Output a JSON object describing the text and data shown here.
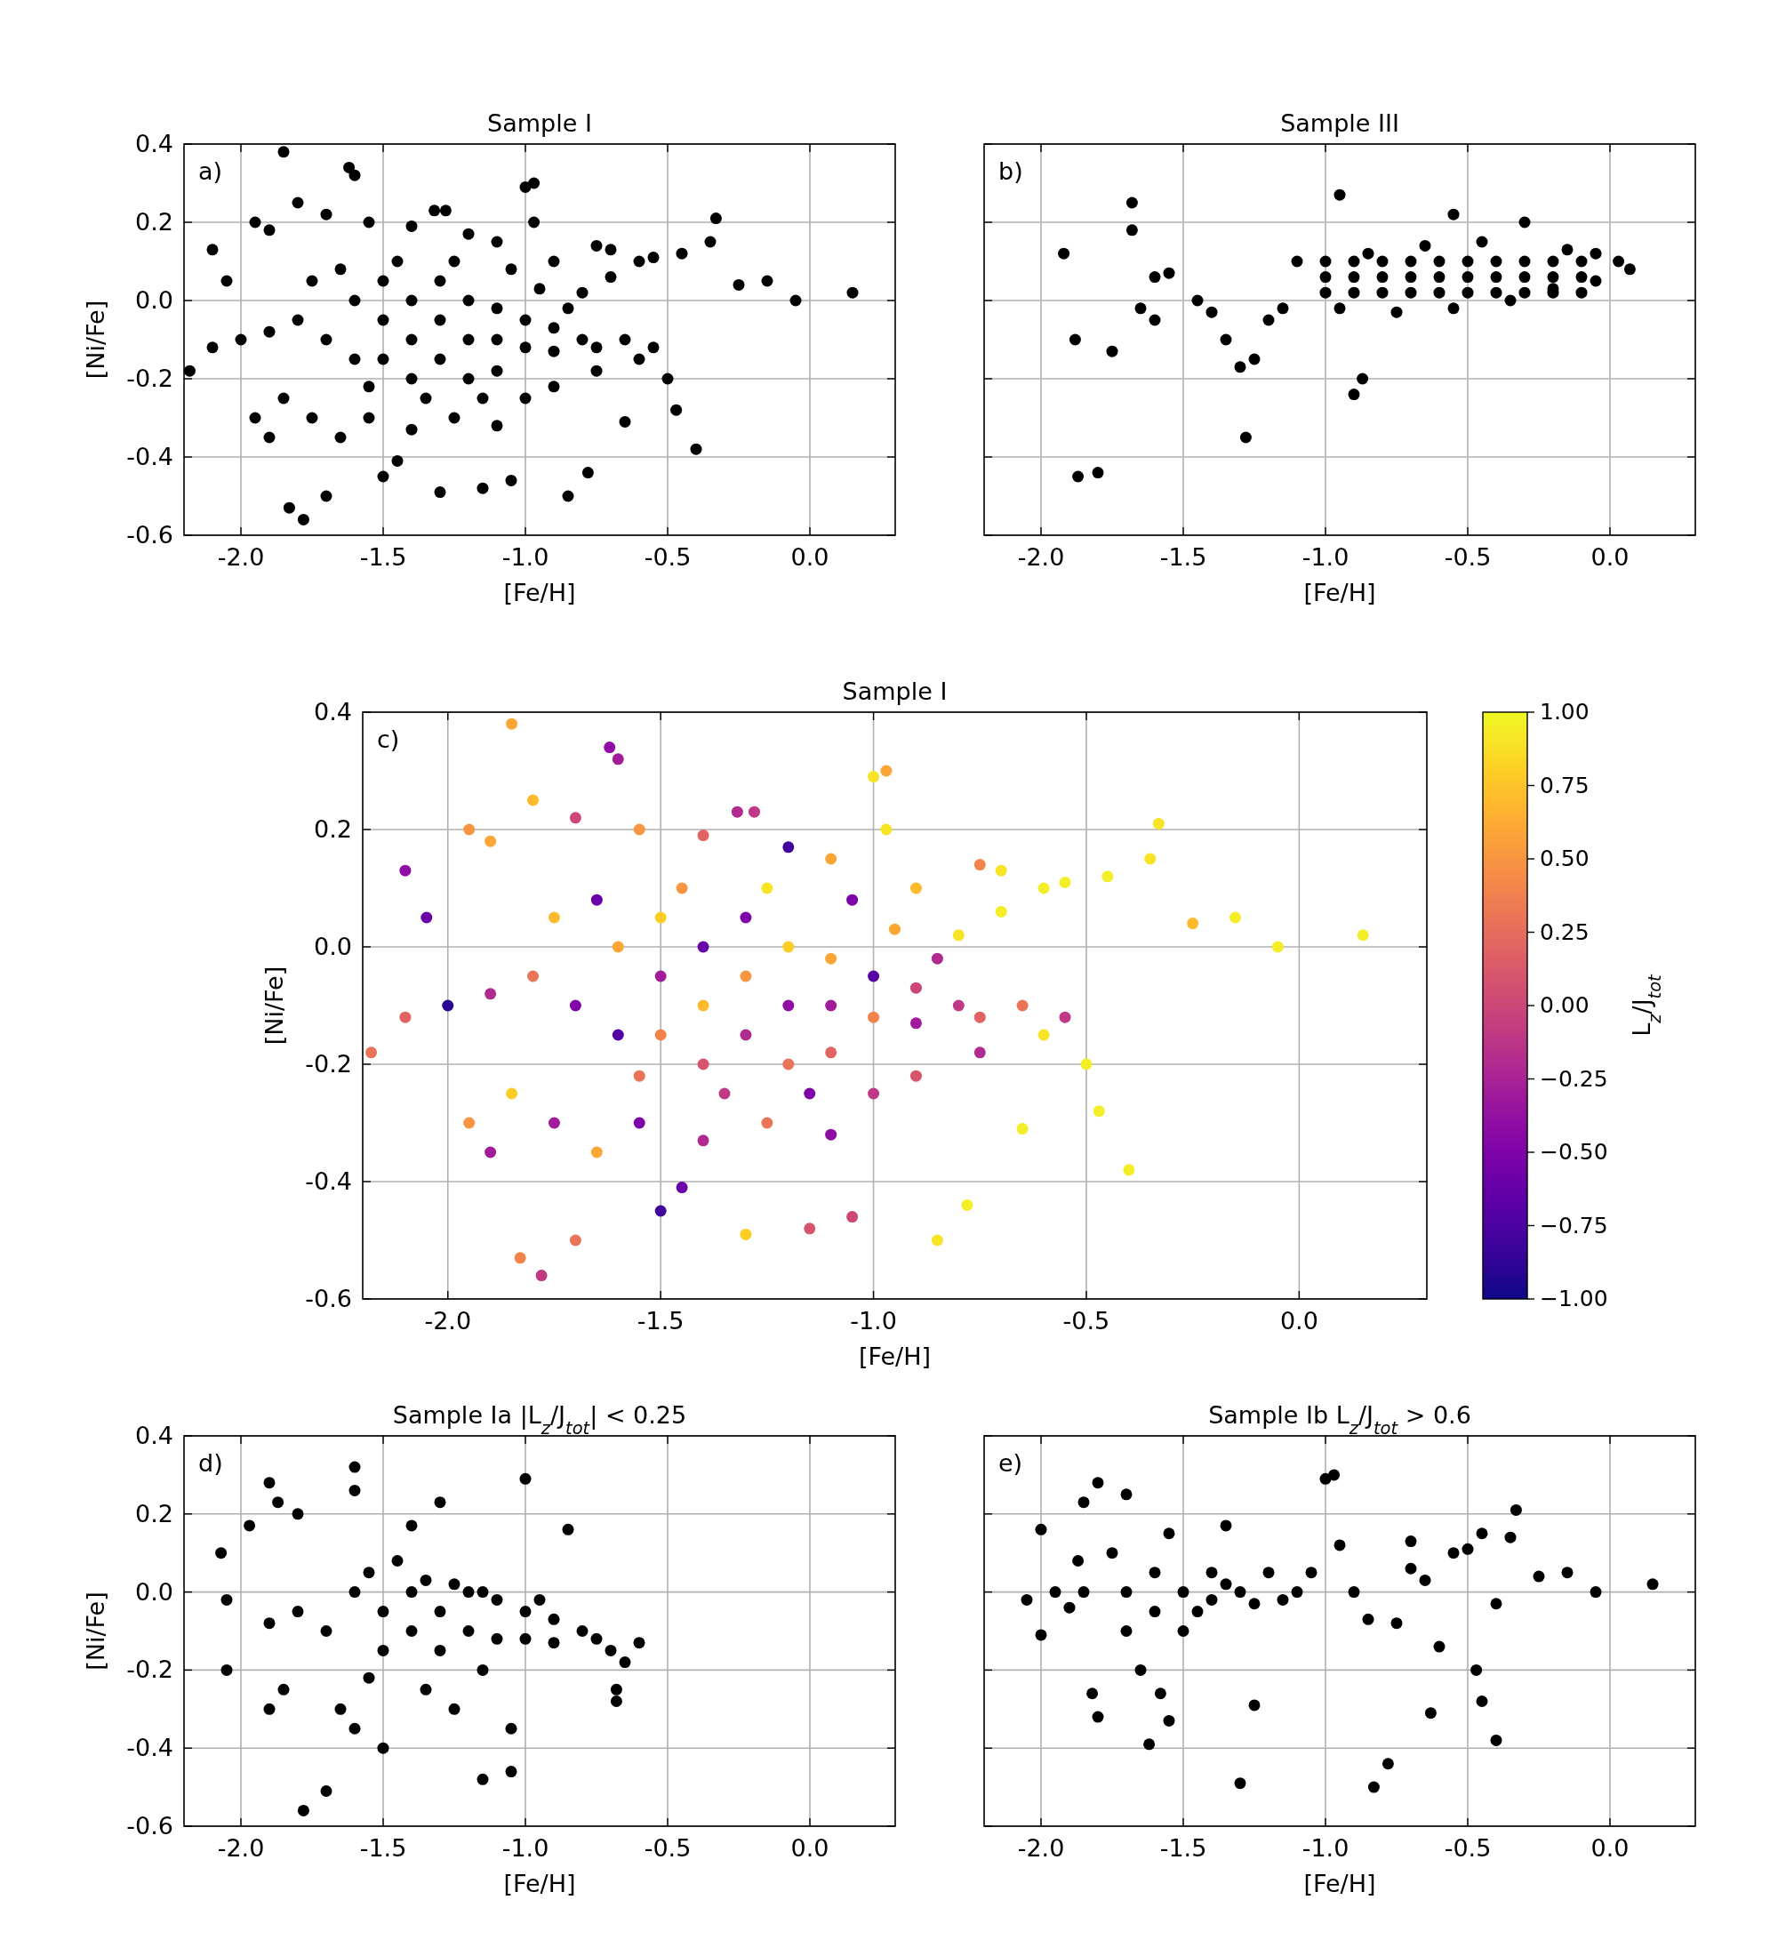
{
  "chart_data": [
    {
      "type": "scatter",
      "title": "Sample I",
      "xlabel": "[Fe/H]",
      "ylabel": "[Ni/Fe]",
      "annotations": [
        "a)"
      ],
      "grid": true,
      "marker": "circle",
      "xlim": [
        -2.2,
        0.3
      ],
      "xticks": [
        {
          "value": -2,
          "label": "-2.0"
        },
        {
          "value": -1.5,
          "label": "-1.5"
        },
        {
          "value": -1,
          "label": "-1.0"
        },
        {
          "value": -0.5,
          "label": "-0.5"
        },
        {
          "value": 0,
          "label": "0.0"
        }
      ],
      "ylim": [
        -0.6,
        0.4
      ],
      "yticks": [
        {
          "value": -0.6,
          "label": "-0.6"
        },
        {
          "value": -0.4,
          "label": "-0.4"
        },
        {
          "value": -0.2,
          "label": "-0.2"
        },
        {
          "value": 0,
          "label": "0.0"
        },
        {
          "value": 0.2,
          "label": "0.2"
        },
        {
          "value": 0.4,
          "label": "0.4"
        }
      ],
      "series": [
        {
          "color": "#000000",
          "x": [
            -2.18,
            -2.1,
            -1.95,
            -1.85,
            -1.83,
            -1.78,
            -1.7,
            -1.62,
            -1.6,
            -1.5,
            -1.45,
            -1.3,
            -1.32,
            -1.28,
            -1.15,
            -1.05,
            -1.0,
            -0.97,
            -0.85,
            -0.78,
            -0.65,
            -0.4,
            -0.47,
            -0.5,
            -0.33,
            -0.35,
            -0.25,
            -0.15,
            -0.05,
            0.15,
            -0.45,
            -0.55,
            -0.6,
            -0.7,
            -0.75,
            -0.7,
            -0.8,
            -0.9,
            -0.97,
            -1.1,
            -1.2,
            -1.4,
            -1.55,
            -1.7,
            -1.8,
            -1.9,
            -2.05,
            -2.0,
            -2.1,
            -1.95,
            -1.9,
            -1.85,
            -1.75,
            -1.65,
            -1.55,
            -1.4,
            -1.25,
            -1.1,
            -1.0,
            -0.9,
            -0.75,
            -0.6,
            -0.55,
            -0.65,
            -1.7,
            -1.6,
            -1.6,
            -1.5,
            -1.5,
            -1.5,
            -1.4,
            -1.4,
            -1.4,
            -1.3,
            -1.3,
            -1.3,
            -1.2,
            -1.2,
            -1.2,
            -1.1,
            -1.1,
            -1.1,
            -1.0,
            -1.0,
            -0.9,
            -0.9,
            -0.8,
            -0.75,
            -1.8,
            -1.9,
            -1.75,
            -1.65,
            -1.45,
            -1.25,
            -1.05,
            -0.95,
            -0.85,
            -1.35,
            -1.55,
            -1.15
          ],
          "values": [
            -0.18,
            0.13,
            0.2,
            0.38,
            -0.53,
            -0.56,
            -0.5,
            0.34,
            0.32,
            -0.45,
            -0.41,
            -0.49,
            0.23,
            0.23,
            -0.48,
            -0.46,
            0.29,
            0.3,
            -0.5,
            -0.44,
            -0.31,
            -0.38,
            -0.28,
            -0.2,
            0.21,
            0.15,
            0.04,
            0.05,
            0.0,
            0.02,
            0.12,
            0.11,
            0.1,
            0.13,
            0.14,
            0.06,
            0.02,
            0.1,
            0.2,
            0.15,
            0.17,
            0.19,
            0.2,
            0.22,
            0.25,
            0.18,
            0.05,
            -0.1,
            -0.12,
            -0.3,
            -0.35,
            -0.25,
            -0.3,
            -0.35,
            -0.3,
            -0.33,
            -0.3,
            -0.32,
            -0.25,
            -0.22,
            -0.18,
            -0.15,
            -0.12,
            -0.1,
            -0.1,
            0.0,
            -0.15,
            0.05,
            -0.05,
            -0.15,
            0.0,
            -0.1,
            -0.2,
            0.05,
            -0.05,
            -0.15,
            0.0,
            -0.1,
            -0.2,
            -0.02,
            -0.1,
            -0.18,
            -0.05,
            -0.12,
            -0.07,
            -0.13,
            -0.1,
            -0.12,
            -0.05,
            -0.08,
            0.05,
            0.08,
            0.1,
            0.1,
            0.08,
            0.03,
            -0.02,
            -0.25,
            -0.22,
            -0.25
          ]
        }
      ]
    },
    {
      "type": "scatter",
      "title": "Sample III",
      "xlabel": "[Fe/H]",
      "annotations": [
        "b)"
      ],
      "grid": true,
      "marker": "circle",
      "tick_labels": "x",
      "xlim": [
        -2.2,
        0.3
      ],
      "xticks": [
        {
          "value": -2,
          "label": "-2.0"
        },
        {
          "value": -1.5,
          "label": "-1.5"
        },
        {
          "value": -1,
          "label": "-1.0"
        },
        {
          "value": -0.5,
          "label": "-0.5"
        },
        {
          "value": 0,
          "label": "0.0"
        }
      ],
      "ylim": [
        -0.6,
        0.4
      ],
      "yticks": [
        {
          "value": -0.6,
          "label": null
        },
        {
          "value": -0.4,
          "label": null
        },
        {
          "value": -0.2,
          "label": null
        },
        {
          "value": 0,
          "label": null
        },
        {
          "value": 0.2,
          "label": null
        },
        {
          "value": 0.4,
          "label": null
        }
      ],
      "series": [
        {
          "color": "#000000",
          "x": [
            -1.92,
            -1.88,
            -1.87,
            -1.8,
            -1.75,
            -1.68,
            -1.68,
            -1.6,
            -1.55,
            -1.65,
            -1.6,
            -1.45,
            -1.4,
            -1.35,
            -1.3,
            -1.28,
            -1.25,
            -1.2,
            -1.15,
            -1.1,
            -0.95,
            -0.9,
            -0.87,
            -0.55,
            0.07,
            0.03,
            -0.05,
            -0.3,
            -1.0,
            -0.9,
            -0.8,
            -0.7,
            -0.6,
            -0.5,
            -0.4,
            -0.3,
            -0.2,
            -0.1,
            -1.0,
            -0.9,
            -0.8,
            -0.7,
            -0.6,
            -0.5,
            -0.4,
            -0.3,
            -0.2,
            -0.1,
            -1.0,
            -0.9,
            -0.8,
            -0.7,
            -0.6,
            -0.5,
            -0.4,
            -0.3,
            -0.2,
            -0.1,
            -0.05,
            -0.15,
            -0.45,
            -0.65,
            -0.85,
            -0.95,
            -0.75,
            -0.55,
            -0.35,
            -0.2
          ],
          "values": [
            0.12,
            -0.1,
            -0.45,
            -0.44,
            -0.13,
            0.25,
            0.18,
            0.06,
            0.07,
            -0.02,
            -0.05,
            0.0,
            -0.03,
            -0.1,
            -0.17,
            -0.35,
            -0.15,
            -0.05,
            -0.02,
            0.1,
            0.27,
            -0.24,
            -0.2,
            0.22,
            0.08,
            0.1,
            0.12,
            0.2,
            0.02,
            0.02,
            0.02,
            0.02,
            0.02,
            0.02,
            0.02,
            0.02,
            0.02,
            0.02,
            0.06,
            0.06,
            0.06,
            0.06,
            0.06,
            0.06,
            0.06,
            0.06,
            0.06,
            0.06,
            0.1,
            0.1,
            0.1,
            0.1,
            0.1,
            0.1,
            0.1,
            0.1,
            0.1,
            0.1,
            0.05,
            0.13,
            0.15,
            0.14,
            0.12,
            -0.02,
            -0.03,
            -0.02,
            0.0,
            0.03
          ]
        }
      ]
    },
    {
      "type": "scatter",
      "title": "Sample I",
      "xlabel": "[Fe/H]",
      "ylabel": "[Ni/Fe]",
      "annotations": [
        "c)"
      ],
      "grid": true,
      "marker": "circle",
      "clabel": "L$_{z}$/J$_{tot}$",
      "clim": [
        -1,
        1
      ],
      "cticks": [
        {
          "value": -1,
          "label": "−1.00"
        },
        {
          "value": -0.75,
          "label": "−0.75"
        },
        {
          "value": -0.5,
          "label": "−0.50"
        },
        {
          "value": -0.25,
          "label": "−0.25"
        },
        {
          "value": 0,
          "label": "0.00"
        },
        {
          "value": 0.25,
          "label": "0.25"
        },
        {
          "value": 0.5,
          "label": "0.50"
        },
        {
          "value": 0.75,
          "label": "0.75"
        },
        {
          "value": 1,
          "label": "1.00"
        }
      ],
      "xlim": [
        -2.2,
        0.3
      ],
      "xticks": [
        {
          "value": -2,
          "label": "-2.0"
        },
        {
          "value": -1.5,
          "label": "-1.5"
        },
        {
          "value": -1,
          "label": "-1.0"
        },
        {
          "value": -0.5,
          "label": "-0.5"
        },
        {
          "value": 0,
          "label": "0.0"
        }
      ],
      "ylim": [
        -0.6,
        0.4
      ],
      "yticks": [
        {
          "value": -0.6,
          "label": "-0.6"
        },
        {
          "value": -0.4,
          "label": "-0.4"
        },
        {
          "value": -0.2,
          "label": "-0.2"
        },
        {
          "value": 0,
          "label": "0.0"
        },
        {
          "value": 0.2,
          "label": "0.2"
        },
        {
          "value": 0.4,
          "label": "0.4"
        }
      ],
      "series": [
        {
          "x": [
            -2.18,
            -2.1,
            -1.95,
            -1.85,
            -1.83,
            -1.78,
            -1.7,
            -1.62,
            -1.6,
            -1.5,
            -1.45,
            -1.3,
            -1.32,
            -1.28,
            -1.15,
            -1.05,
            -1.0,
            -0.97,
            -0.85,
            -0.78,
            -0.65,
            -0.4,
            -0.47,
            -0.5,
            -0.33,
            -0.35,
            -0.25,
            -0.15,
            -0.05,
            0.15,
            -0.45,
            -0.55,
            -0.6,
            -0.7,
            -0.75,
            -0.7,
            -0.8,
            -0.9,
            -0.97,
            -1.1,
            -1.2,
            -1.4,
            -1.55,
            -1.7,
            -1.8,
            -1.9,
            -2.05,
            -2.0,
            -2.1,
            -1.95,
            -1.9,
            -1.85,
            -1.75,
            -1.65,
            -1.55,
            -1.4,
            -1.25,
            -1.1,
            -1.0,
            -0.9,
            -0.75,
            -0.6,
            -0.55,
            -0.65,
            -1.7,
            -1.6,
            -1.6,
            -1.5,
            -1.5,
            -1.5,
            -1.4,
            -1.4,
            -1.4,
            -1.3,
            -1.3,
            -1.3,
            -1.2,
            -1.2,
            -1.2,
            -1.1,
            -1.1,
            -1.1,
            -1.0,
            -1.0,
            -0.9,
            -0.9,
            -0.8,
            -0.75,
            -1.8,
            -1.9,
            -1.75,
            -1.65,
            -1.45,
            -1.25,
            -1.05,
            -0.95,
            -0.85,
            -1.35,
            -1.55,
            -1.15
          ],
          "values": [
            -0.18,
            0.13,
            0.2,
            0.38,
            -0.53,
            -0.56,
            -0.5,
            0.34,
            0.32,
            -0.45,
            -0.41,
            -0.49,
            0.23,
            0.23,
            -0.48,
            -0.46,
            0.29,
            0.3,
            -0.5,
            -0.44,
            -0.31,
            -0.38,
            -0.28,
            -0.2,
            0.21,
            0.15,
            0.04,
            0.05,
            0.0,
            0.02,
            0.12,
            0.11,
            0.1,
            0.13,
            0.14,
            0.06,
            0.02,
            0.1,
            0.2,
            0.15,
            0.17,
            0.19,
            0.2,
            0.22,
            0.25,
            0.18,
            0.05,
            -0.1,
            -0.12,
            -0.3,
            -0.35,
            -0.25,
            -0.3,
            -0.35,
            -0.3,
            -0.33,
            -0.3,
            -0.32,
            -0.25,
            -0.22,
            -0.18,
            -0.15,
            -0.12,
            -0.1,
            -0.1,
            0.0,
            -0.15,
            0.05,
            -0.05,
            -0.15,
            0.0,
            -0.1,
            -0.2,
            0.05,
            -0.05,
            -0.15,
            0.0,
            -0.1,
            -0.2,
            -0.02,
            -0.1,
            -0.18,
            -0.05,
            -0.12,
            -0.07,
            -0.13,
            -0.1,
            -0.12,
            -0.05,
            -0.08,
            0.05,
            0.08,
            0.1,
            0.1,
            0.08,
            0.03,
            -0.02,
            -0.25,
            -0.22,
            -0.25
          ],
          "cvalues": [
            0.3,
            -0.4,
            0.5,
            0.6,
            0.4,
            -0.1,
            0.3,
            -0.4,
            -0.3,
            -0.8,
            -0.6,
            0.8,
            -0.2,
            -0.1,
            0.1,
            0.0,
            0.9,
            0.6,
            0.9,
            0.95,
            0.95,
            0.95,
            0.95,
            0.95,
            0.9,
            0.9,
            0.7,
            0.95,
            0.95,
            0.95,
            0.95,
            0.95,
            0.95,
            0.9,
            0.4,
            0.95,
            0.9,
            0.7,
            0.9,
            0.6,
            -0.8,
            0.2,
            0.5,
            0.0,
            0.7,
            0.6,
            -0.6,
            -0.9,
            0.2,
            0.5,
            -0.3,
            0.8,
            -0.3,
            0.6,
            -0.5,
            -0.2,
            0.3,
            -0.4,
            -0.1,
            0.1,
            -0.2,
            0.9,
            -0.1,
            0.3,
            -0.5,
            0.6,
            -0.7,
            0.8,
            -0.3,
            0.4,
            -0.6,
            0.7,
            0.1,
            -0.5,
            0.5,
            -0.2,
            0.8,
            -0.4,
            0.3,
            0.6,
            -0.3,
            0.2,
            -0.7,
            0.4,
            0.0,
            -0.3,
            -0.1,
            0.2,
            0.3,
            -0.2,
            0.7,
            -0.6,
            0.5,
            0.9,
            -0.5,
            0.6,
            -0.2,
            -0.1,
            0.3,
            -0.5
          ]
        }
      ]
    },
    {
      "type": "scatter",
      "title": "Sample Ia |L$_{z}$/J$_{tot}$| < 0.25",
      "xlabel": "[Fe/H]",
      "ylabel": "[Ni/Fe]",
      "annotations": [
        "d)"
      ],
      "grid": true,
      "marker": "circle",
      "xlim": [
        -2.2,
        0.3
      ],
      "xticks": [
        {
          "value": -2,
          "label": "-2.0"
        },
        {
          "value": -1.5,
          "label": "-1.5"
        },
        {
          "value": -1,
          "label": "-1.0"
        },
        {
          "value": -0.5,
          "label": "-0.5"
        },
        {
          "value": 0,
          "label": "0.0"
        }
      ],
      "ylim": [
        -0.6,
        0.4
      ],
      "yticks": [
        {
          "value": -0.6,
          "label": "-0.6"
        },
        {
          "value": -0.4,
          "label": "-0.4"
        },
        {
          "value": -0.2,
          "label": "-0.2"
        },
        {
          "value": 0,
          "label": "0.0"
        },
        {
          "value": 0.2,
          "label": "0.2"
        },
        {
          "value": 0.4,
          "label": "0.4"
        }
      ],
      "series": [
        {
          "color": "#000000",
          "x": [
            -2.07,
            -2.05,
            -2.05,
            -1.97,
            -1.9,
            -1.87,
            -1.8,
            -1.9,
            -1.85,
            -1.78,
            -1.7,
            -1.6,
            -1.6,
            -1.65,
            -1.6,
            -1.5,
            -1.3,
            -1.4,
            -1.15,
            -1.05,
            -1.0,
            -0.85,
            -0.6,
            -0.68,
            -0.68,
            -1.05,
            -1.25,
            -1.7,
            -1.6,
            -1.5,
            -1.5,
            -1.4,
            -1.4,
            -1.3,
            -1.3,
            -1.2,
            -1.2,
            -1.1,
            -1.1,
            -1.0,
            -1.0,
            -0.9,
            -0.9,
            -0.8,
            -0.75,
            -0.7,
            -1.8,
            -1.9,
            -1.55,
            -1.45,
            -1.35,
            -1.25,
            -1.15,
            -0.95,
            -1.35,
            -1.55,
            -1.15,
            -0.65
          ],
          "values": [
            0.1,
            -0.02,
            -0.2,
            0.17,
            0.28,
            0.23,
            0.2,
            -0.3,
            -0.25,
            -0.56,
            -0.51,
            0.32,
            0.26,
            -0.3,
            -0.35,
            -0.4,
            0.23,
            0.17,
            -0.48,
            -0.46,
            0.29,
            0.16,
            -0.13,
            -0.25,
            -0.28,
            -0.35,
            -0.3,
            -0.1,
            0.0,
            -0.05,
            -0.15,
            0.0,
            -0.1,
            -0.05,
            -0.15,
            0.0,
            -0.1,
            -0.02,
            -0.12,
            -0.05,
            -0.12,
            -0.07,
            -0.13,
            -0.1,
            -0.12,
            -0.15,
            -0.05,
            -0.08,
            0.05,
            0.08,
            0.03,
            0.02,
            0.0,
            -0.02,
            -0.25,
            -0.22,
            -0.2,
            -0.18
          ]
        }
      ]
    },
    {
      "type": "scatter",
      "title": "Sample Ib L$_{z}$/J$_{tot}$ > 0.6",
      "xlabel": "[Fe/H]",
      "annotations": [
        "e)"
      ],
      "grid": true,
      "marker": "circle",
      "tick_labels": "x",
      "xlim": [
        -2.2,
        0.3
      ],
      "xticks": [
        {
          "value": -2,
          "label": "-2.0"
        },
        {
          "value": -1.5,
          "label": "-1.5"
        },
        {
          "value": -1,
          "label": "-1.0"
        },
        {
          "value": -0.5,
          "label": "-0.5"
        },
        {
          "value": 0,
          "label": "0.0"
        }
      ],
      "ylim": [
        -0.6,
        0.4
      ],
      "yticks": [
        {
          "value": -0.6,
          "label": null
        },
        {
          "value": -0.4,
          "label": null
        },
        {
          "value": -0.2,
          "label": null
        },
        {
          "value": 0,
          "label": null
        },
        {
          "value": 0.2,
          "label": null
        },
        {
          "value": 0.4,
          "label": null
        }
      ],
      "series": [
        {
          "color": "#000000",
          "x": [
            -2.05,
            -2.0,
            -2.0,
            -1.95,
            -1.9,
            -1.87,
            -1.85,
            -1.8,
            -1.82,
            -1.8,
            -1.7,
            -1.75,
            -1.7,
            -1.65,
            -1.62,
            -1.58,
            -1.55,
            -1.55,
            -1.5,
            -1.45,
            -1.4,
            -1.35,
            -1.3,
            -1.3,
            -1.25,
            -1.25,
            -1.2,
            -1.15,
            -1.1,
            -1.05,
            -1.0,
            -0.97,
            -0.95,
            -0.9,
            -0.85,
            -0.83,
            -0.78,
            -0.75,
            -0.7,
            -0.7,
            -0.65,
            -0.6,
            -0.63,
            -0.55,
            -0.5,
            -0.47,
            -0.45,
            -0.4,
            -0.45,
            -0.33,
            -0.35,
            -0.25,
            -0.4,
            -0.15,
            -0.05,
            0.15,
            -1.6,
            -1.5,
            -1.4,
            -1.35,
            -1.6,
            -1.7,
            -1.85
          ],
          "values": [
            -0.02,
            0.16,
            -0.11,
            0.0,
            -0.04,
            0.08,
            0.23,
            0.28,
            -0.26,
            -0.32,
            0.25,
            0.1,
            -0.1,
            -0.2,
            -0.39,
            -0.26,
            -0.33,
            0.15,
            0.0,
            -0.05,
            0.05,
            0.17,
            -0.49,
            0.0,
            -0.03,
            -0.29,
            0.05,
            -0.02,
            0.0,
            0.05,
            0.29,
            0.3,
            0.12,
            0.0,
            -0.07,
            -0.5,
            -0.44,
            -0.08,
            0.13,
            0.06,
            0.03,
            -0.14,
            -0.31,
            0.1,
            0.11,
            -0.2,
            -0.28,
            -0.38,
            0.15,
            0.21,
            0.14,
            0.04,
            -0.03,
            0.05,
            0.0,
            0.02,
            0.05,
            -0.1,
            -0.02,
            0.02,
            -0.05,
            0.0,
            0.0
          ]
        }
      ]
    }
  ]
}
